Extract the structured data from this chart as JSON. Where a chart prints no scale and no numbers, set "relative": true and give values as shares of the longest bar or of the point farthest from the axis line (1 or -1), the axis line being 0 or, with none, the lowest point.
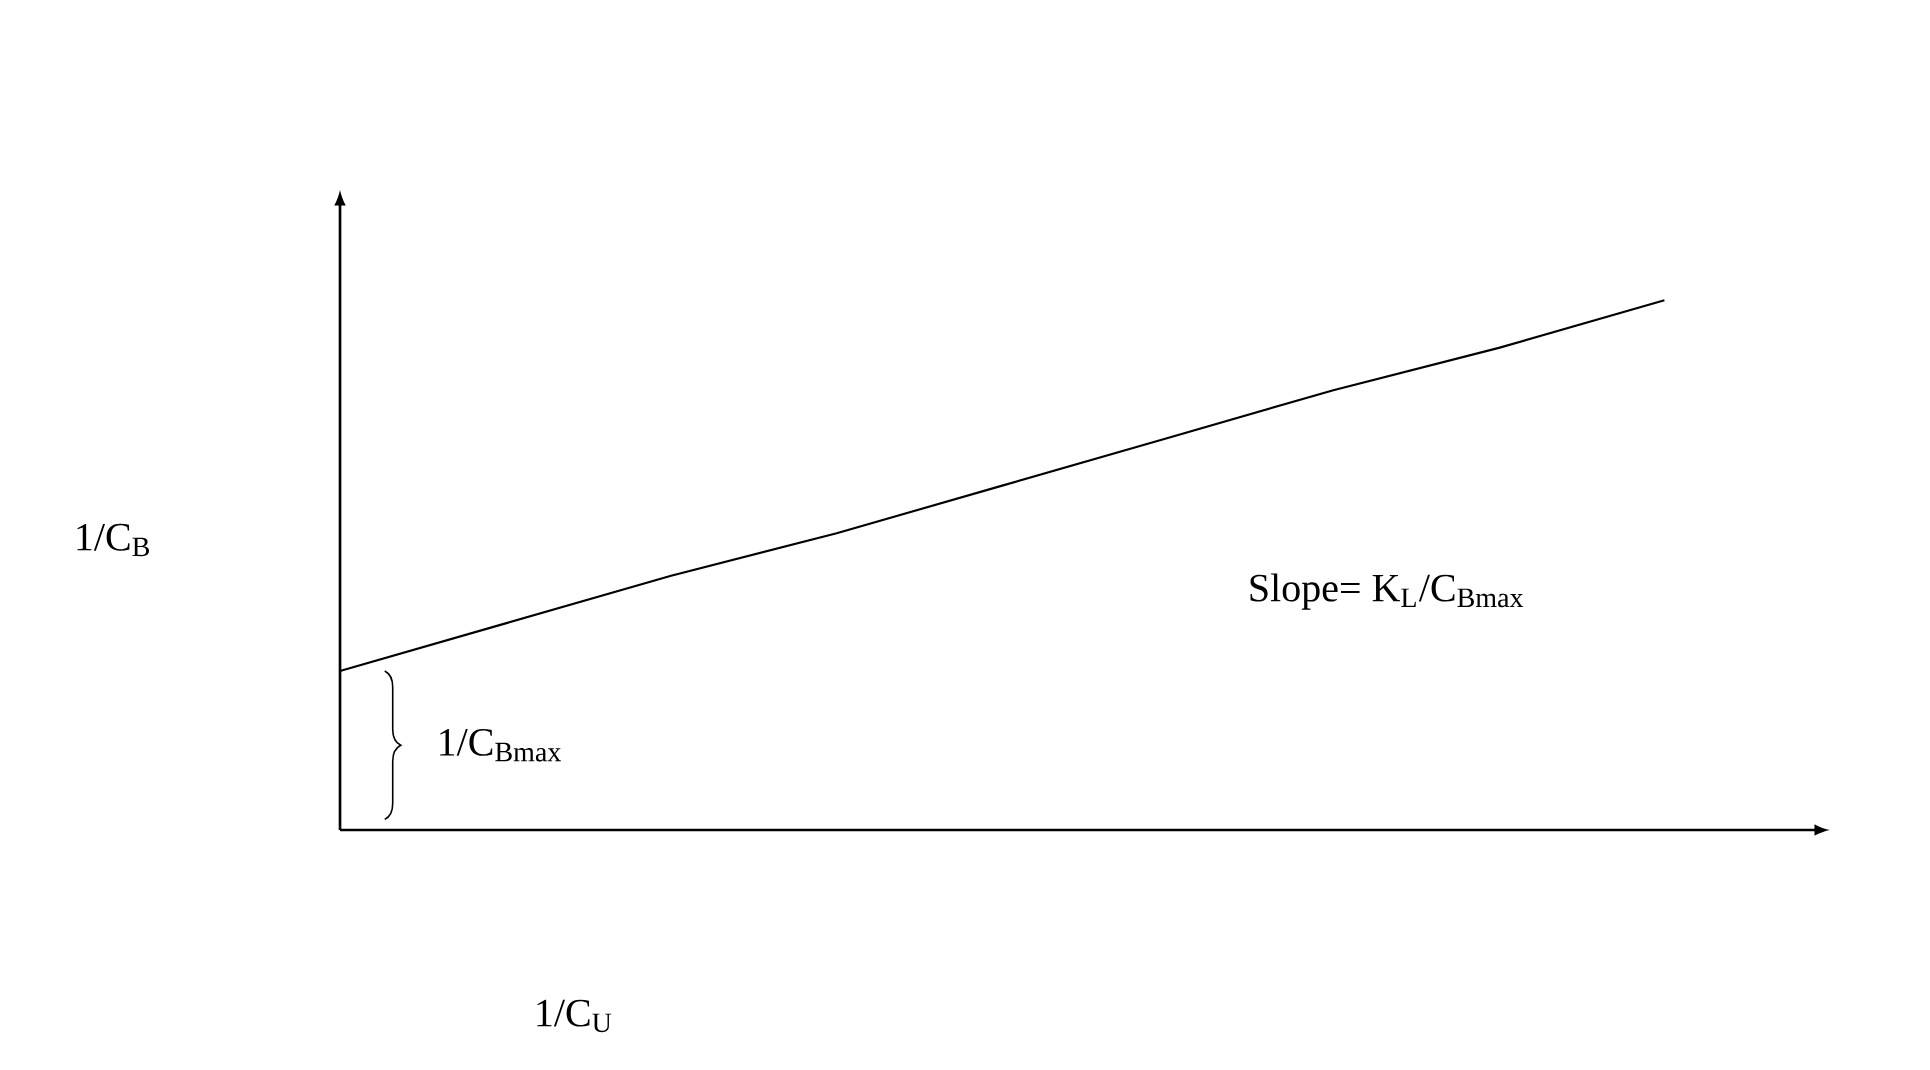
{
  "chart_data": {
    "type": "line",
    "relative": true,
    "categories": [
      null,
      null,
      null,
      null,
      null,
      null,
      null,
      null,
      null,
      null
    ],
    "color": "#000000",
    "values": [
      0.3,
      0.39,
      0.48,
      0.56,
      0.65,
      0.74,
      0.83,
      0.91,
      1,
      null
    ],
    "xlabel": "1/C$_{U}$",
    "ylabel": "1/C$_{B}$",
    "annotations": [
      "Slope= K$_{L}$/C$_{Bmax}$",
      "1/C$_{Bmax}$"
    ]
  }
}
